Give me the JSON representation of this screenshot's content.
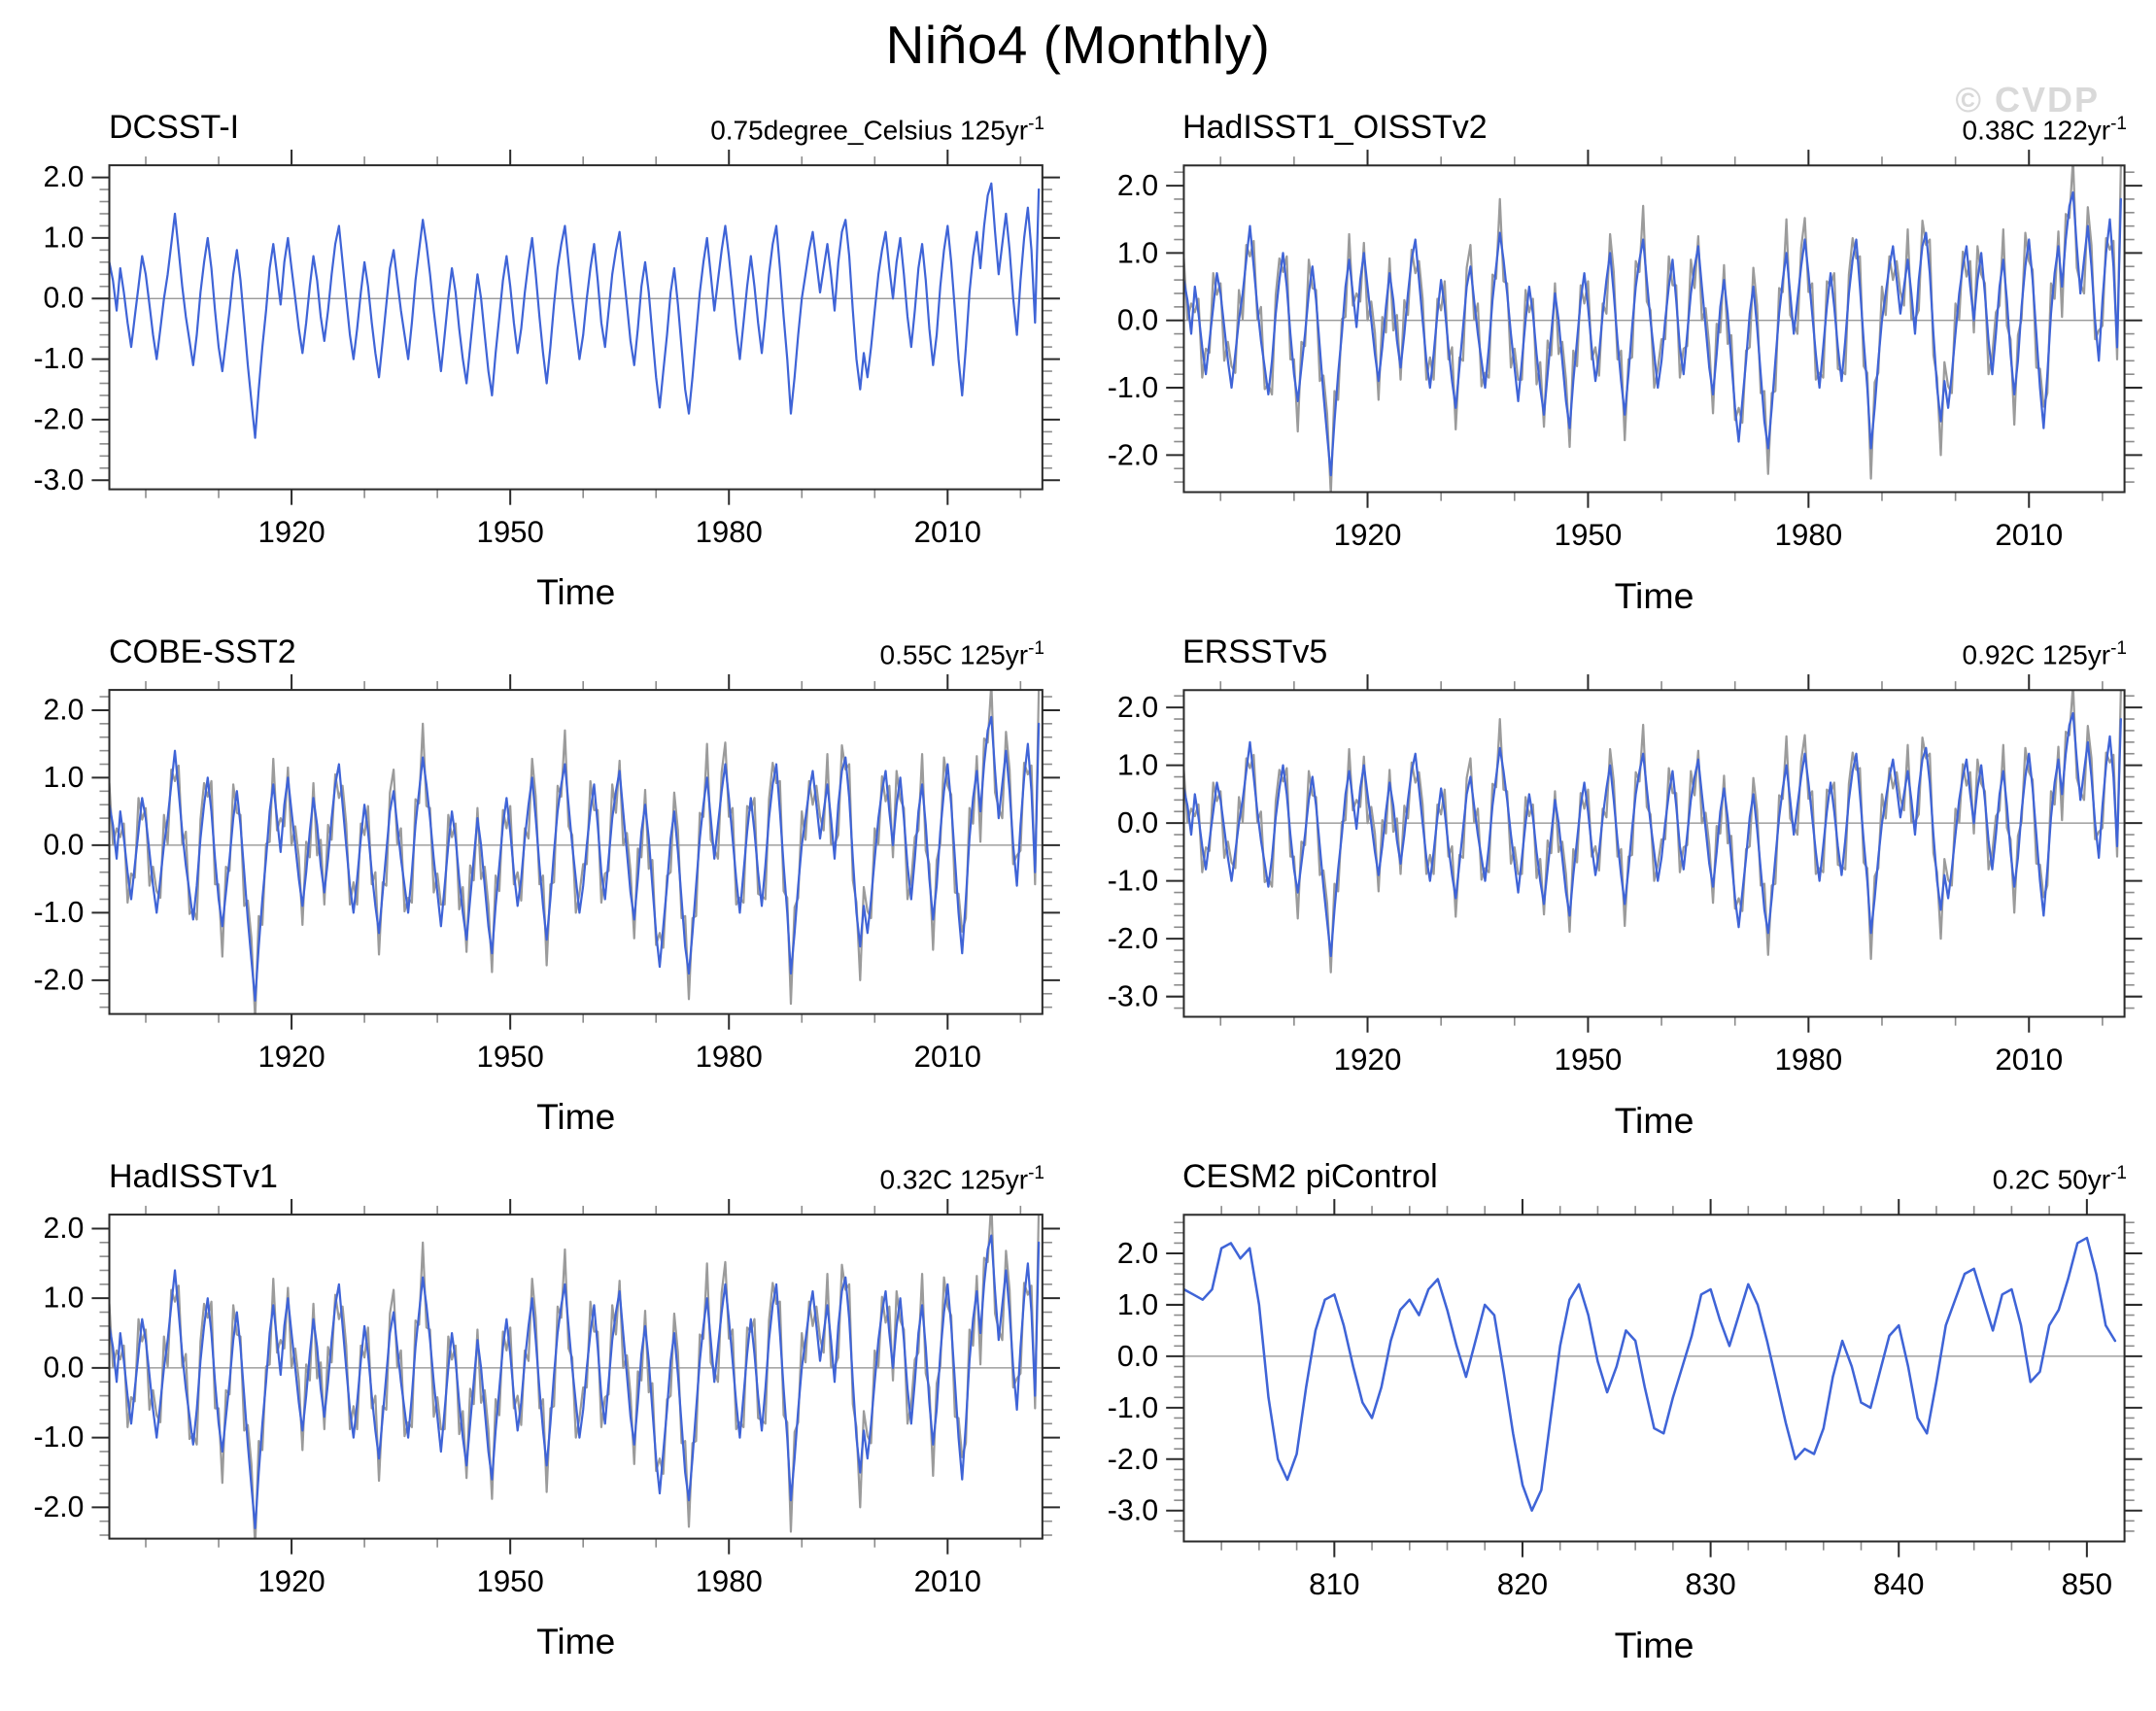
{
  "page": {
    "watermark": "© CVDP"
  },
  "colors": {
    "line_blue": "#3f64d7",
    "line_gray": "#9b9b9b",
    "zero_line": "#8c8c8c",
    "frame": "#2b2b2b",
    "tick_major": "#2b2b2b",
    "tick_minor": "#8c8c8c",
    "watermark": "#d9d9d9"
  },
  "chart_data": {
    "type": "line",
    "figure_title": "Niño4 (Monthly)",
    "x_axis_label": "Time",
    "legend": "none",
    "grid": "off",
    "shared_series": {
      "obs_smoothed": [
        0.6,
        0.3,
        -0.2,
        0.5,
        0.1,
        -0.4,
        -0.8,
        -0.3,
        0.2,
        0.7,
        0.4,
        -0.1,
        -0.6,
        -1.0,
        -0.5,
        0.0,
        0.4,
        0.9,
        1.4,
        0.8,
        0.2,
        -0.3,
        -0.7,
        -1.1,
        -0.6,
        0.1,
        0.6,
        1.0,
        0.5,
        -0.2,
        -0.8,
        -1.2,
        -0.7,
        -0.2,
        0.4,
        0.8,
        0.3,
        -0.4,
        -1.1,
        -1.7,
        -2.3,
        -1.5,
        -0.8,
        -0.2,
        0.5,
        0.9,
        0.4,
        -0.1,
        0.6,
        1.0,
        0.5,
        0.0,
        -0.5,
        -0.9,
        -0.4,
        0.2,
        0.7,
        0.3,
        -0.3,
        -0.7,
        -0.2,
        0.4,
        0.9,
        1.2,
        0.6,
        0.0,
        -0.6,
        -1.0,
        -0.5,
        0.1,
        0.6,
        0.2,
        -0.4,
        -0.9,
        -1.3,
        -0.7,
        -0.1,
        0.5,
        0.8,
        0.3,
        -0.2,
        -0.6,
        -1.0,
        -0.4,
        0.3,
        0.8,
        1.3,
        0.9,
        0.4,
        -0.2,
        -0.7,
        -1.2,
        -0.6,
        0.0,
        0.5,
        0.1,
        -0.5,
        -1.0,
        -1.4,
        -0.8,
        -0.2,
        0.4,
        0.0,
        -0.6,
        -1.2,
        -1.6,
        -0.9,
        -0.3,
        0.3,
        0.7,
        0.2,
        -0.4,
        -0.9,
        -0.5,
        0.1,
        0.6,
        1.0,
        0.4,
        -0.3,
        -0.9,
        -1.4,
        -0.8,
        -0.1,
        0.5,
        0.9,
        1.2,
        0.6,
        0.0,
        -0.5,
        -1.0,
        -0.6,
        0.0,
        0.5,
        0.9,
        0.3,
        -0.4,
        -0.8,
        -0.2,
        0.4,
        0.8,
        1.1,
        0.5,
        -0.1,
        -0.7,
        -1.1,
        -0.5,
        0.2,
        0.6,
        0.1,
        -0.6,
        -1.3,
        -1.8,
        -1.2,
        -0.6,
        0.1,
        0.5,
        -0.1,
        -0.8,
        -1.5,
        -1.9,
        -1.3,
        -0.6,
        0.1,
        0.6,
        1.0,
        0.4,
        -0.2,
        0.3,
        0.8,
        1.2,
        0.7,
        0.1,
        -0.5,
        -1.0,
        -0.4,
        0.2,
        0.7,
        0.2,
        -0.4,
        -0.9,
        -0.3,
        0.4,
        0.9,
        1.2,
        0.5,
        -0.3,
        -1.0,
        -1.9,
        -1.3,
        -0.6,
        0.0,
        0.4,
        0.8,
        1.1,
        0.6,
        0.1,
        0.5,
        0.9,
        0.4,
        -0.2,
        0.6,
        1.1,
        1.3,
        0.7,
        -0.2,
        -1.0,
        -1.5,
        -0.9,
        -1.3,
        -0.8,
        -0.2,
        0.4,
        0.8,
        1.1,
        0.5,
        0.0,
        0.6,
        1.0,
        0.4,
        -0.3,
        -0.8,
        -0.2,
        0.5,
        0.9,
        0.3,
        -0.5,
        -1.1,
        -0.6,
        0.2,
        0.8,
        1.2,
        0.6,
        -0.2,
        -1.0,
        -1.6,
        -0.8,
        0.1,
        0.7,
        1.1,
        0.5,
        1.2,
        1.7,
        1.9,
        1.1,
        0.4,
        0.9,
        1.4,
        0.8,
        0.0,
        -0.6,
        0.3,
        1.0,
        1.5,
        0.8,
        -0.4,
        1.8
      ],
      "cesm_smoothed": [
        1.3,
        1.2,
        1.1,
        1.3,
        2.1,
        2.2,
        1.9,
        2.1,
        1.0,
        -0.8,
        -2.0,
        -2.4,
        -1.9,
        -0.6,
        0.5,
        1.1,
        1.2,
        0.6,
        -0.2,
        -0.9,
        -1.2,
        -0.6,
        0.3,
        0.9,
        1.1,
        0.8,
        1.3,
        1.5,
        0.9,
        0.2,
        -0.4,
        0.3,
        1.0,
        0.8,
        -0.3,
        -1.5,
        -2.5,
        -3.0,
        -2.6,
        -1.2,
        0.2,
        1.1,
        1.4,
        0.8,
        -0.1,
        -0.7,
        -0.2,
        0.5,
        0.3,
        -0.6,
        -1.4,
        -1.5,
        -0.8,
        -0.2,
        0.4,
        1.2,
        1.3,
        0.7,
        0.2,
        0.8,
        1.4,
        1.0,
        0.3,
        -0.5,
        -1.3,
        -2.0,
        -1.8,
        -1.9,
        -1.4,
        -0.4,
        0.3,
        -0.2,
        -0.9,
        -1.0,
        -0.3,
        0.4,
        0.6,
        -0.2,
        -1.2,
        -1.5,
        -0.5,
        0.6,
        1.1,
        1.6,
        1.7,
        1.1,
        0.5,
        1.2,
        1.3,
        0.6,
        -0.5,
        -0.3,
        0.6,
        0.9,
        1.5,
        2.2,
        2.3,
        1.6,
        0.6,
        0.3
      ]
    },
    "jitter_pattern": [
      0.32,
      -0.28,
      0.45,
      -0.38,
      0.22,
      -0.45,
      0.38,
      -0.18,
      0.5,
      -0.32,
      0.15,
      -0.5,
      0.28
    ],
    "panels": [
      {
        "title": "DCSST-I",
        "trend": {
          "text": "0.75degree_Celsius 125yr",
          "sup": "-1"
        },
        "xlabel": "Time",
        "x_range": [
          1895,
          2023
        ],
        "x_start": 1895,
        "x_step": 0.5,
        "x_major": [
          1920,
          1950,
          1980,
          2010
        ],
        "x_minor_step": 10,
        "y_range": [
          -3.15,
          2.2
        ],
        "y_major": [
          2.0,
          1.0,
          0.0,
          -1.0,
          -2.0,
          -3.0
        ],
        "y_minor_step": 0.2,
        "series": [
          {
            "name": "smoothed-anomaly",
            "color_key": "line_blue",
            "data": "obs_smoothed",
            "width": 2.2
          }
        ]
      },
      {
        "title": "HadISST1_OISSTv2",
        "trend": {
          "text": "0.38C 122yr",
          "sup": "-1"
        },
        "xlabel": "Time",
        "x_range": [
          1895,
          2023
        ],
        "x_start": 1895,
        "x_step": 0.5,
        "x_major": [
          1920,
          1950,
          1980,
          2010
        ],
        "x_minor_step": 10,
        "y_range": [
          -2.55,
          2.3
        ],
        "y_major": [
          2.0,
          1.0,
          0.0,
          -1.0,
          -2.0
        ],
        "y_minor_step": 0.2,
        "series": [
          {
            "name": "monthly-anomaly",
            "color_key": "line_gray",
            "data": "obs_smoothed",
            "jitter": true,
            "width": 2.2
          },
          {
            "name": "smoothed-anomaly",
            "color_key": "line_blue",
            "data": "obs_smoothed",
            "width": 2.2
          }
        ]
      },
      {
        "title": "COBE-SST2",
        "trend": {
          "text": "0.55C 125yr",
          "sup": "-1"
        },
        "xlabel": "Time",
        "x_range": [
          1895,
          2023
        ],
        "x_start": 1895,
        "x_step": 0.5,
        "x_major": [
          1920,
          1950,
          1980,
          2010
        ],
        "x_minor_step": 10,
        "y_range": [
          -2.5,
          2.3
        ],
        "y_major": [
          2.0,
          1.0,
          0.0,
          -1.0,
          -2.0
        ],
        "y_minor_step": 0.2,
        "series": [
          {
            "name": "monthly-anomaly",
            "color_key": "line_gray",
            "data": "obs_smoothed",
            "jitter": true,
            "width": 2.2
          },
          {
            "name": "smoothed-anomaly",
            "color_key": "line_blue",
            "data": "obs_smoothed",
            "width": 2.2
          }
        ]
      },
      {
        "title": "ERSSTv5",
        "trend": {
          "text": "0.92C 125yr",
          "sup": "-1"
        },
        "xlabel": "Time",
        "x_range": [
          1895,
          2023
        ],
        "x_start": 1895,
        "x_step": 0.5,
        "x_major": [
          1920,
          1950,
          1980,
          2010
        ],
        "x_minor_step": 10,
        "y_range": [
          -3.35,
          2.3
        ],
        "y_major": [
          2.0,
          1.0,
          0.0,
          -1.0,
          -2.0,
          -3.0
        ],
        "y_minor_step": 0.2,
        "series": [
          {
            "name": "monthly-anomaly",
            "color_key": "line_gray",
            "data": "obs_smoothed",
            "jitter": true,
            "width": 2.2
          },
          {
            "name": "smoothed-anomaly",
            "color_key": "line_blue",
            "data": "obs_smoothed",
            "width": 2.2
          }
        ]
      },
      {
        "title": "HadISSTv1",
        "trend": {
          "text": "0.32C 125yr",
          "sup": "-1"
        },
        "xlabel": "Time",
        "x_range": [
          1895,
          2023
        ],
        "x_start": 1895,
        "x_step": 0.5,
        "x_major": [
          1920,
          1950,
          1980,
          2010
        ],
        "x_minor_step": 10,
        "y_range": [
          -2.45,
          2.2
        ],
        "y_major": [
          2.0,
          1.0,
          0.0,
          -1.0,
          -2.0
        ],
        "y_minor_step": 0.2,
        "series": [
          {
            "name": "monthly-anomaly",
            "color_key": "line_gray",
            "data": "obs_smoothed",
            "jitter": true,
            "width": 2.2
          },
          {
            "name": "smoothed-anomaly",
            "color_key": "line_blue",
            "data": "obs_smoothed",
            "width": 2.2
          }
        ]
      },
      {
        "title": "CESM2 piControl",
        "trend": {
          "text": "0.2C 50yr",
          "sup": "-1"
        },
        "xlabel": "Time",
        "x_range": [
          802,
          852
        ],
        "x_start": 802,
        "x_step": 0.5,
        "x_major": [
          810,
          820,
          830,
          840,
          850
        ],
        "x_minor_step": 2,
        "y_range": [
          -3.6,
          2.75
        ],
        "y_major": [
          2.0,
          1.0,
          0.0,
          -1.0,
          -2.0,
          -3.0
        ],
        "y_minor_step": 0.2,
        "series": [
          {
            "name": "smoothed-anomaly",
            "color_key": "line_blue",
            "data": "cesm_smoothed",
            "width": 2.5
          }
        ]
      }
    ]
  }
}
